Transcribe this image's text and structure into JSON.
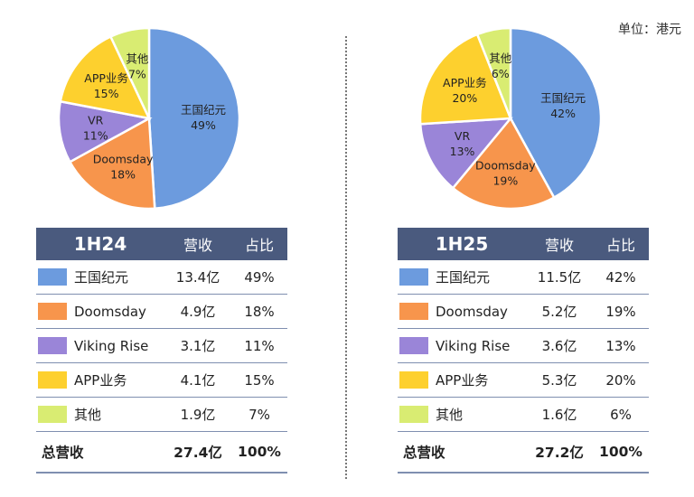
{
  "unit_label": "单位：港元",
  "chart_data": [
    {
      "type": "pie",
      "title": "1H24",
      "header": {
        "period": "1H24",
        "revenue": "营收",
        "share": "占比"
      },
      "slices": [
        {
          "label": "王国纪元",
          "percent": 49,
          "revenue": "13.4亿",
          "share": "49%",
          "color": "#6c9bde"
        },
        {
          "label": "Doomsday",
          "percent": 18,
          "revenue": "4.9亿",
          "share": "18%",
          "color": "#f7954c"
        },
        {
          "label": "VR",
          "legend_label": "Viking Rise",
          "percent": 11,
          "revenue": "3.1亿",
          "share": "11%",
          "color": "#9a85d8"
        },
        {
          "label": "APP业务",
          "percent": 15,
          "revenue": "4.1亿",
          "share": "15%",
          "color": "#fdd02e"
        },
        {
          "label": "其他",
          "percent": 7,
          "revenue": "1.9亿",
          "share": "7%",
          "color": "#d9ec72"
        }
      ],
      "total": {
        "label": "总营收",
        "revenue": "27.4亿",
        "share": "100%"
      }
    },
    {
      "type": "pie",
      "title": "1H25",
      "header": {
        "period": "1H25",
        "revenue": "营收",
        "share": "占比"
      },
      "slices": [
        {
          "label": "王国纪元",
          "percent": 42,
          "revenue": "11.5亿",
          "share": "42%",
          "color": "#6c9bde"
        },
        {
          "label": "Doomsday",
          "percent": 19,
          "revenue": "5.2亿",
          "share": "19%",
          "color": "#f7954c"
        },
        {
          "label": "VR",
          "legend_label": "Viking Rise",
          "percent": 13,
          "revenue": "3.6亿",
          "share": "13%",
          "color": "#9a85d8"
        },
        {
          "label": "APP业务",
          "percent": 20,
          "revenue": "5.3亿",
          "share": "20%",
          "color": "#fdd02e"
        },
        {
          "label": "其他",
          "percent": 6,
          "revenue": "1.6亿",
          "share": "6%",
          "color": "#d9ec72"
        }
      ],
      "total": {
        "label": "总营收",
        "revenue": "27.2亿",
        "share": "100%"
      }
    }
  ]
}
